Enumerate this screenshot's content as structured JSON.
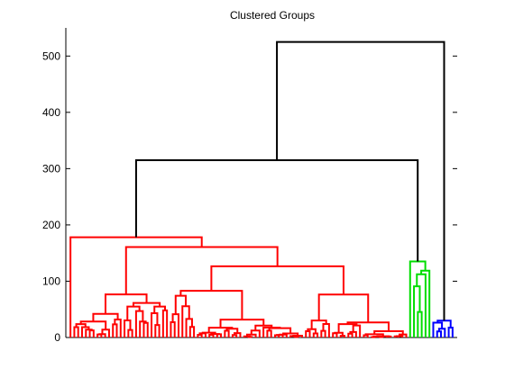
{
  "chart_data": {
    "type": "dendrogram",
    "title": "Clustered Groups",
    "xlabel": "",
    "ylabel": "",
    "ylim": [
      0,
      550
    ],
    "yticks": [
      0,
      100,
      200,
      300,
      400,
      500
    ],
    "ytick_labels": [
      "0",
      "100",
      "200",
      "300",
      "400",
      "500"
    ],
    "grid": false,
    "legend": "none",
    "colors": {
      "red": "#ff0000",
      "green": "#00dd00",
      "blue": "#0000ff",
      "link": "#000000"
    },
    "groups": [
      {
        "color": "red",
        "leaf_range": [
          0,
          88
        ],
        "max_height": 178
      },
      {
        "color": "green",
        "leaf_range": [
          88,
          94
        ],
        "max_height": 135
      },
      {
        "color": "blue",
        "leaf_range": [
          94,
          100
        ],
        "max_height": 30
      }
    ],
    "top_links": [
      {
        "label": "red+green",
        "height": 315
      },
      {
        "label": "all",
        "height": 525
      }
    ],
    "merges": [
      {
        "group": "red",
        "height": 178
      },
      {
        "group": "red",
        "height": 165
      },
      {
        "group": "red",
        "height": 150
      },
      {
        "group": "red",
        "height": 135
      },
      {
        "group": "red",
        "height": 121
      },
      {
        "group": "red",
        "height": 119
      },
      {
        "group": "red",
        "height": 90
      },
      {
        "group": "red",
        "height": 80
      },
      {
        "group": "red",
        "height": 60
      },
      {
        "group": "red",
        "height": 55
      },
      {
        "group": "red",
        "height": 45
      },
      {
        "group": "red",
        "height": 40
      },
      {
        "group": "red",
        "height": 33
      },
      {
        "group": "red",
        "height": 27
      },
      {
        "group": "red",
        "height": 20
      },
      {
        "group": "red",
        "height": 15
      },
      {
        "group": "green",
        "height": 135
      },
      {
        "group": "green",
        "height": 90
      },
      {
        "group": "blue",
        "height": 30
      }
    ]
  }
}
